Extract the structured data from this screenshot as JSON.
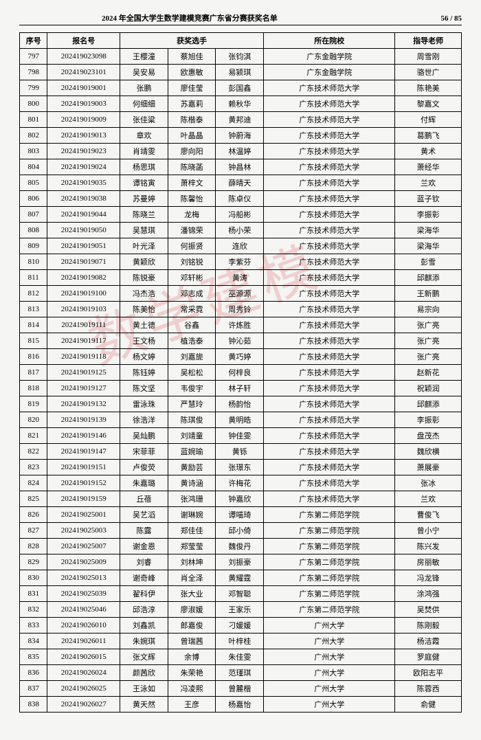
{
  "header": {
    "title": "2024 年全国大学生数学建模竞赛广东省分赛获奖名单",
    "pager": "56 / 85"
  },
  "watermark": "数学建模",
  "columns": {
    "seq": "序号",
    "reg": "报名号",
    "players": "获奖选手",
    "school": "所在院校",
    "teacher": "指导老师"
  },
  "rows": [
    {
      "seq": "797",
      "reg": "202419023098",
      "p1": "王樱潼",
      "p2": "蔡旭佳",
      "p3": "张钧淇",
      "school": "广东金融学院",
      "teacher": "周雪刚"
    },
    {
      "seq": "798",
      "reg": "202419023101",
      "p1": "吴安易",
      "p2": "欧惠敏",
      "p3": "易颍琪",
      "school": "广东金融学院",
      "teacher": "骆世广"
    },
    {
      "seq": "799",
      "reg": "202419019001",
      "p1": "张鹏",
      "p2": "廖佳莹",
      "p3": "彭国鑫",
      "school": "广东技术师范大学",
      "teacher": "陈艳美"
    },
    {
      "seq": "800",
      "reg": "202419019003",
      "p1": "何细细",
      "p2": "苏嘉莉",
      "p3": "赖秋华",
      "school": "广东技术师范大学",
      "teacher": "黎嘉文"
    },
    {
      "seq": "801",
      "reg": "202419019009",
      "p1": "张佳粱",
      "p2": "陈楷泰",
      "p3": "黄邦迪",
      "school": "广东技术师范大学",
      "teacher": "付辉"
    },
    {
      "seq": "802",
      "reg": "202419019013",
      "p1": "章欢",
      "p2": "叶晶晶",
      "p3": "钟蔚海",
      "school": "广东技术师范大学",
      "teacher": "葛鹏飞"
    },
    {
      "seq": "803",
      "reg": "202419019023",
      "p1": "肖靖雯",
      "p2": "廖向阳",
      "p3": "林温婷",
      "school": "广东技术师范大学",
      "teacher": "黄术"
    },
    {
      "seq": "804",
      "reg": "202419019024",
      "p1": "杨思琪",
      "p2": "陈晓菡",
      "p3": "钟昌林",
      "school": "广东技术师范大学",
      "teacher": "萧经华"
    },
    {
      "seq": "805",
      "reg": "202419019035",
      "p1": "谭铭寅",
      "p2": "萧梓文",
      "p3": "薛晴天",
      "school": "广东技术师范大学",
      "teacher": "兰欢"
    },
    {
      "seq": "806",
      "reg": "202419019038",
      "p1": "苏曼婷",
      "p2": "陈馨怡",
      "p3": "陈卓仪",
      "school": "广东技术师范大学",
      "teacher": "蓝子钦"
    },
    {
      "seq": "807",
      "reg": "202419019044",
      "p1": "陈晓兰",
      "p2": "龙梅",
      "p3": "冯船彬",
      "school": "广东技术师范大学",
      "teacher": "李振彰"
    },
    {
      "seq": "808",
      "reg": "202419019050",
      "p1": "吴慧琪",
      "p2": "潘锦荣",
      "p3": "杨小荣",
      "school": "广东技术师范大学",
      "teacher": "梁海华"
    },
    {
      "seq": "809",
      "reg": "202419019051",
      "p1": "叶光泽",
      "p2": "何振贤",
      "p3": "连欣",
      "school": "广东技术师范大学",
      "teacher": "梁海华"
    },
    {
      "seq": "810",
      "reg": "202419019071",
      "p1": "黄颖欣",
      "p2": "刘铭锐",
      "p3": "李紫芬",
      "school": "广东技术师范大学",
      "teacher": "彭雪"
    },
    {
      "seq": "811",
      "reg": "202419019082",
      "p1": "陈锐豪",
      "p2": "邓轩彬",
      "p3": "黄涛",
      "school": "广东技术师范大学",
      "teacher": "邱麒添"
    },
    {
      "seq": "812",
      "reg": "202419019100",
      "p1": "冯杰浩",
      "p2": "邓志成",
      "p3": "巫源源",
      "school": "广东技术师范大学",
      "teacher": "王新鹏"
    },
    {
      "seq": "813",
      "reg": "202419019103",
      "p1": "陈美怡",
      "p2": "常采霓",
      "p3": "周秀铃",
      "school": "广东技术师范大学",
      "teacher": "易宗向"
    },
    {
      "seq": "814",
      "reg": "202419019111",
      "p1": "黄土德",
      "p2": "谷鑫",
      "p3": "许炼胜",
      "school": "广东技术师范大学",
      "teacher": "张广亮"
    },
    {
      "seq": "815",
      "reg": "202419019117",
      "p1": "王文杨",
      "p2": "植浩泰",
      "p3": "钟沁茹",
      "school": "广东技术师范大学",
      "teacher": "张广亮"
    },
    {
      "seq": "816",
      "reg": "202419019118",
      "p1": "杨文婷",
      "p2": "刘嘉旎",
      "p3": "黄巧婷",
      "school": "广东技术师范大学",
      "teacher": "张广亮"
    },
    {
      "seq": "817",
      "reg": "202419019125",
      "p1": "陈钰婷",
      "p2": "吴松松",
      "p3": "何梓良",
      "school": "广东技术师范大学",
      "teacher": "赵新花"
    },
    {
      "seq": "818",
      "reg": "202419019127",
      "p1": "陈文坚",
      "p2": "韦俊宇",
      "p3": "林子轩",
      "school": "广东技术师范大学",
      "teacher": "祝颖润"
    },
    {
      "seq": "819",
      "reg": "202419019132",
      "p1": "雷泳珠",
      "p2": "严慧玲",
      "p3": "杨韵怡",
      "school": "广东技术师范大学",
      "teacher": "邱麒添"
    },
    {
      "seq": "820",
      "reg": "202419019139",
      "p1": "徐浩洋",
      "p2": "陈琪俊",
      "p3": "黄明皓",
      "school": "广东技术师范大学",
      "teacher": "李振彰"
    },
    {
      "seq": "821",
      "reg": "202419019146",
      "p1": "吴灿鹏",
      "p2": "刘靖童",
      "p3": "钟佳雯",
      "school": "广东技术师范大学",
      "teacher": "盘茂杰"
    },
    {
      "seq": "822",
      "reg": "202419019147",
      "p1": "宋菲菲",
      "p2": "蓝婉瑜",
      "p3": "黄铄",
      "school": "广东技术师范大学",
      "teacher": "魏欣横"
    },
    {
      "seq": "823",
      "reg": "202419019151",
      "p1": "卢俊荧",
      "p2": "黄励芸",
      "p3": "张璟东",
      "school": "广东技术师范大学",
      "teacher": "萧展豪"
    },
    {
      "seq": "824",
      "reg": "202419019152",
      "p1": "朱嘉璐",
      "p2": "黄诗涵",
      "p3": "许梅花",
      "school": "广东技术师范大学",
      "teacher": "张冰"
    },
    {
      "seq": "825",
      "reg": "202419019159",
      "p1": "丘蓓",
      "p2": "张鸿珊",
      "p3": "钟嘉欣",
      "school": "广东技术师范大学",
      "teacher": "兰欢"
    },
    {
      "seq": "826",
      "reg": "202419025001",
      "p1": "吴艺滔",
      "p2": "谢琳婉",
      "p3": "谭喵琦",
      "school": "广东第二师范学院",
      "teacher": "曹俊飞"
    },
    {
      "seq": "827",
      "reg": "202419025003",
      "p1": "陈露",
      "p2": "郑佳佳",
      "p3": "邱小倚",
      "school": "广东第二师范学院",
      "teacher": "曾小宁"
    },
    {
      "seq": "828",
      "reg": "202419025007",
      "p1": "谢金恩",
      "p2": "郑莹莹",
      "p3": "魏俊丹",
      "school": "广东第二师范学院",
      "teacher": "陈兴发"
    },
    {
      "seq": "829",
      "reg": "202419025009",
      "p1": "刘睿",
      "p2": "刘林坤",
      "p3": "刘振豪",
      "school": "广东第二师范学院",
      "teacher": "房丽敏"
    },
    {
      "seq": "830",
      "reg": "202419025013",
      "p1": "谢奇峰",
      "p2": "肖全泽",
      "p3": "黄耀霆",
      "school": "广东第二师范学院",
      "teacher": "冯龙锋"
    },
    {
      "seq": "831",
      "reg": "202419025039",
      "p1": "翟科伊",
      "p2": "张大业",
      "p3": "邓智聪",
      "school": "广东第二师范学院",
      "teacher": "涂鸿强"
    },
    {
      "seq": "832",
      "reg": "202419025046",
      "p1": "邱浩淳",
      "p2": "廖淑媛",
      "p3": "王家乐",
      "school": "广东第二师范学院",
      "teacher": "吴焚供"
    },
    {
      "seq": "833",
      "reg": "202419026010",
      "p1": "刘鑫凯",
      "p2": "郎嘉俊",
      "p3": "刁媛媛",
      "school": "广州大学",
      "teacher": "陈刚毅"
    },
    {
      "seq": "834",
      "reg": "202419026011",
      "p1": "朱婉琪",
      "p2": "曾瑞茜",
      "p3": "叶梓桂",
      "school": "广州大学",
      "teacher": "杨洁霞"
    },
    {
      "seq": "835",
      "reg": "202419026015",
      "p1": "张文辉",
      "p2": "余博",
      "p3": "朱佳雯",
      "school": "广州大学",
      "teacher": "罗庭健"
    },
    {
      "seq": "836",
      "reg": "202419026024",
      "p1": "颜茜欣",
      "p2": "朱荣艳",
      "p3": "范瑾琪",
      "school": "广州大学",
      "teacher": "欧阳志平"
    },
    {
      "seq": "837",
      "reg": "202419026025",
      "p1": "王泳如",
      "p2": "冯凌熙",
      "p3": "曾麓楷",
      "school": "广州大学",
      "teacher": "陈蓉西"
    },
    {
      "seq": "838",
      "reg": "202419026027",
      "p1": "黄天然",
      "p2": "王彦",
      "p3": "杨嘉怡",
      "school": "广州大学",
      "teacher": "俞健"
    }
  ]
}
